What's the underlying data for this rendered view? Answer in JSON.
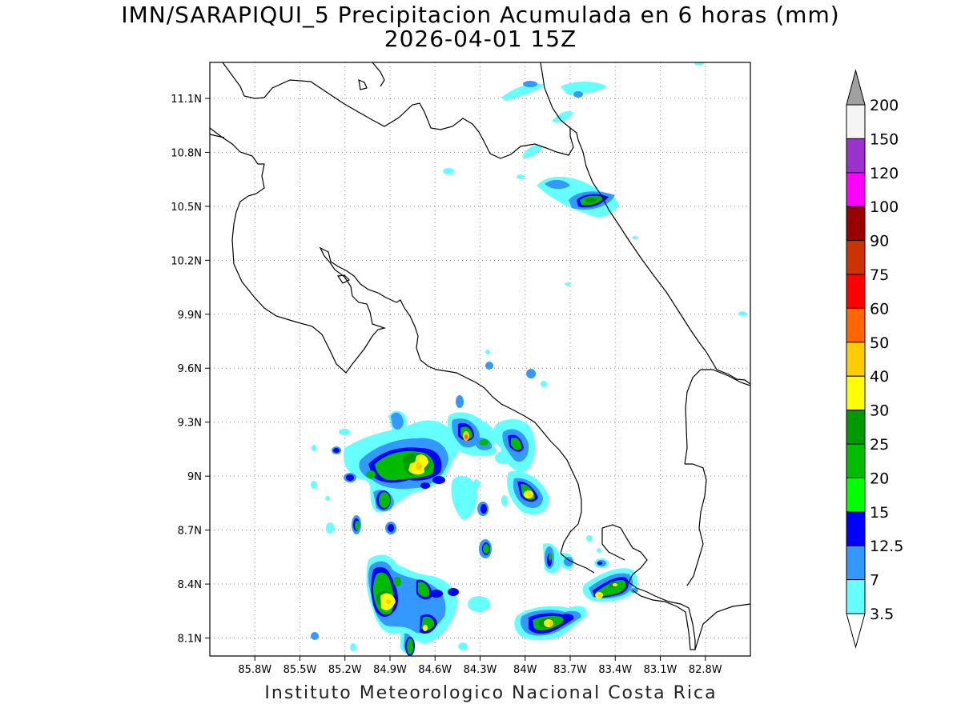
{
  "title_line1": "IMN/SARAPIQUI_5 Precipitacion Acumulada en 6 horas (mm)",
  "title_line2": "2026-04-01 15Z",
  "credit": "Instituto Meteorologico Nacional Costa Rica",
  "map": {
    "lon_range": [
      -86.1,
      -82.5
    ],
    "lat_range": [
      8.0,
      11.3
    ],
    "lon_ticks": [
      {
        "value": -85.8,
        "label": "85.8W"
      },
      {
        "value": -85.5,
        "label": "85.5W"
      },
      {
        "value": -85.2,
        "label": "85.2W"
      },
      {
        "value": -84.9,
        "label": "84.9W"
      },
      {
        "value": -84.6,
        "label": "84.6W"
      },
      {
        "value": -84.3,
        "label": "84.3W"
      },
      {
        "value": -84.0,
        "label": "84W"
      },
      {
        "value": -83.7,
        "label": "83.7W"
      },
      {
        "value": -83.4,
        "label": "83.4W"
      },
      {
        "value": -83.1,
        "label": "83.1W"
      },
      {
        "value": -82.8,
        "label": "82.8W"
      }
    ],
    "lat_ticks": [
      {
        "value": 11.1,
        "label": "11.1N"
      },
      {
        "value": 10.8,
        "label": "10.8N"
      },
      {
        "value": 10.5,
        "label": "10.5N"
      },
      {
        "value": 10.2,
        "label": "10.2N"
      },
      {
        "value": 9.9,
        "label": "9.9N"
      },
      {
        "value": 9.6,
        "label": "9.6N"
      },
      {
        "value": 9.3,
        "label": "9.3N"
      },
      {
        "value": 9.0,
        "label": "9N"
      },
      {
        "value": 8.7,
        "label": "8.7N"
      },
      {
        "value": 8.4,
        "label": "8.4N"
      },
      {
        "value": 8.1,
        "label": "8.1N"
      }
    ],
    "grid": true
  },
  "colorbar": {
    "labels": [
      "200",
      "150",
      "120",
      "100",
      "90",
      "75",
      "60",
      "50",
      "40",
      "30",
      "25",
      "20",
      "15",
      "12.5",
      "7",
      "3.5"
    ],
    "colors": [
      "#f5f5f5",
      "#9933cc",
      "#ff00ff",
      "#990000",
      "#cc3300",
      "#ff0000",
      "#ff6600",
      "#ffcc00",
      "#ffff00",
      "#009900",
      "#00bb00",
      "#00ff00",
      "#0000ff",
      "#3399ff",
      "#66ffff"
    ],
    "upper_arrow_color": "#a0a0a0",
    "lower_arrow_color": "#ffffff"
  }
}
